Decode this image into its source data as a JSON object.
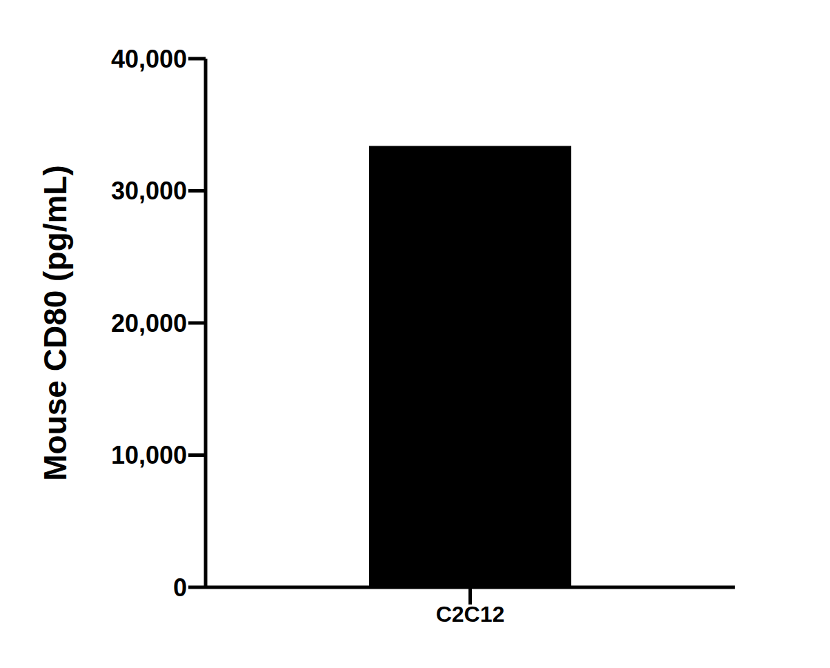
{
  "chart_data": {
    "type": "bar",
    "categories": [
      "C2C12"
    ],
    "values": [
      33400
    ],
    "color": "#000000",
    "ylabel": "Mouse CD80 (pg/mL)",
    "ylim": [
      0,
      40000
    ],
    "yticks": [
      0,
      {
        "value": 10000,
        "label": "10,000"
      },
      {
        "value": 20000,
        "label": "20,000"
      },
      {
        "value": 30000,
        "label": "30,000"
      },
      {
        "value": 40000,
        "label": "40,000"
      }
    ],
    "grid": false
  }
}
